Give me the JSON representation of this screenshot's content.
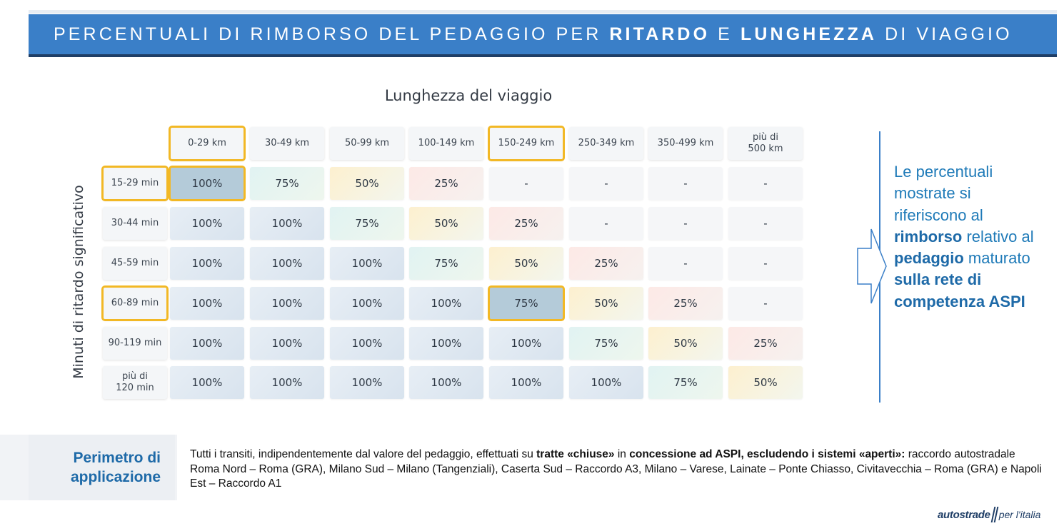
{
  "banner": {
    "part1": "PERCENTUALI DI RIMBORSO DEL PEDAGGIO PER ",
    "bold1": "RITARDO",
    "part2": " E ",
    "bold2": "LUNGHEZZA",
    "part3": " DI VIAGGIO"
  },
  "table": {
    "title": "Lunghezza del viaggio",
    "ylabel": "Minuti di ritardo significativo",
    "columns": [
      "0-29 km",
      "30-49 km",
      "50-99 km",
      "100-149 km",
      "150-249 km",
      "250-349 km",
      "350-499 km",
      "più di\n500 km"
    ],
    "rows": [
      "15-29 min",
      "30-44 min",
      "45-59 min",
      "60-89 min",
      "90-119 min",
      "più di\n120 min"
    ],
    "cells": [
      [
        "100%",
        "75%",
        "50%",
        "25%",
        "-",
        "-",
        "-",
        "-"
      ],
      [
        "100%",
        "100%",
        "75%",
        "50%",
        "25%",
        "-",
        "-",
        "-"
      ],
      [
        "100%",
        "100%",
        "100%",
        "75%",
        "50%",
        "25%",
        "-",
        "-"
      ],
      [
        "100%",
        "100%",
        "100%",
        "100%",
        "75%",
        "50%",
        "25%",
        "-"
      ],
      [
        "100%",
        "100%",
        "100%",
        "100%",
        "100%",
        "75%",
        "50%",
        "25%"
      ],
      [
        "100%",
        "100%",
        "100%",
        "100%",
        "100%",
        "100%",
        "75%",
        "50%"
      ]
    ],
    "highlighted_columns": [
      0,
      4
    ],
    "highlighted_rows": [
      0,
      3
    ],
    "highlighted_cells": [
      [
        0,
        0
      ],
      [
        3,
        4
      ]
    ]
  },
  "side_note": {
    "t1": "Le percentuali mostrate si riferiscono al ",
    "b1": "rimborso",
    "t2": " relativo al ",
    "b2": "pedaggio",
    "t3": " maturato ",
    "b3": "sulla rete di competenza ASPI"
  },
  "perimeter": {
    "label": "Perimetro di applicazione",
    "t1": "Tutti i transiti, indipendentemente dal valore del pedaggio, effettuati su ",
    "b1": "tratte «chiuse»",
    "t2": " in ",
    "b2": "concessione ad ASPI, escludendo i sistemi «aperti»:",
    "t3": " raccordo autostradale Roma Nord – Roma (GRA), Milano Sud – Milano (Tangenziali), Caserta Sud – Raccordo A3, Milano – Varese, Lainate – Ponte Chiasso, Civitavecchia – Roma (GRA) e Napoli Est – Raccordo A1"
  },
  "logo": {
    "brand": "autostrade",
    "tagline": "per l'italia"
  },
  "colors": {
    "banner": "#3a7fc8",
    "accent_text": "#1e7ab8",
    "highlight": "#f2b825"
  }
}
